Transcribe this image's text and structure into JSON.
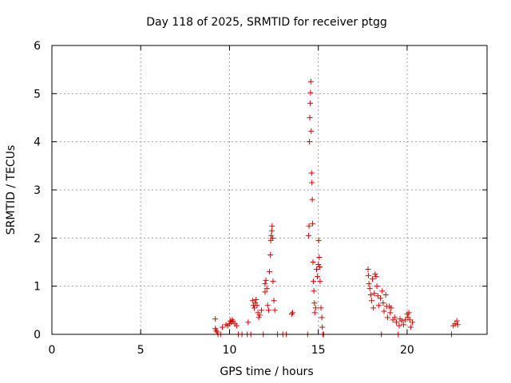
{
  "chart_data": {
    "type": "scatter",
    "title": "Day 118 of 2025, SRMTID for receiver ptgg",
    "xlabel": "GPS time / hours",
    "ylabel": "SRMTID / TECUs",
    "xlim": [
      0,
      24.5
    ],
    "ylim": [
      0,
      6
    ],
    "xticks": [
      0,
      5,
      10,
      15,
      20
    ],
    "yticks": [
      0,
      1,
      2,
      3,
      4,
      5,
      6
    ],
    "grid": true,
    "marker": "plus",
    "color": "#e00000",
    "series": [
      {
        "name": "SRMTID",
        "points": [
          [
            9.2,
            0.32
          ],
          [
            9.2,
            0.12
          ],
          [
            9.25,
            0.08
          ],
          [
            9.3,
            0.05
          ],
          [
            9.35,
            0.0
          ],
          [
            9.5,
            0.0
          ],
          [
            9.6,
            0.15
          ],
          [
            9.8,
            0.2
          ],
          [
            9.9,
            0.18
          ],
          [
            10.0,
            0.22
          ],
          [
            10.05,
            0.28
          ],
          [
            10.1,
            0.25
          ],
          [
            10.15,
            0.3
          ],
          [
            10.2,
            0.27
          ],
          [
            10.3,
            0.22
          ],
          [
            10.4,
            0.18
          ],
          [
            10.5,
            0.0
          ],
          [
            10.7,
            0.0
          ],
          [
            11.0,
            0.0
          ],
          [
            11.05,
            0.25
          ],
          [
            11.2,
            0.0
          ],
          [
            11.3,
            0.7
          ],
          [
            11.35,
            0.6
          ],
          [
            11.4,
            0.55
          ],
          [
            11.45,
            0.65
          ],
          [
            11.5,
            0.72
          ],
          [
            11.55,
            0.6
          ],
          [
            11.6,
            0.45
          ],
          [
            11.65,
            0.35
          ],
          [
            11.7,
            0.4
          ],
          [
            11.8,
            0.5
          ],
          [
            11.9,
            0.0
          ],
          [
            12.0,
            0.88
          ],
          [
            12.0,
            1.05
          ],
          [
            12.05,
            1.12
          ],
          [
            12.1,
            0.95
          ],
          [
            12.15,
            0.6
          ],
          [
            12.2,
            0.5
          ],
          [
            12.25,
            1.3
          ],
          [
            12.3,
            1.65
          ],
          [
            12.32,
            1.95
          ],
          [
            12.35,
            2.05
          ],
          [
            12.38,
            2.15
          ],
          [
            12.4,
            2.25
          ],
          [
            12.42,
            2.0
          ],
          [
            12.45,
            1.1
          ],
          [
            12.5,
            0.7
          ],
          [
            12.55,
            0.5
          ],
          [
            12.7,
            0.0
          ],
          [
            13.0,
            0.0
          ],
          [
            13.2,
            0.0
          ],
          [
            13.5,
            0.42
          ],
          [
            13.55,
            0.45
          ],
          [
            14.4,
            0.0
          ],
          [
            14.45,
            2.05
          ],
          [
            14.48,
            2.25
          ],
          [
            14.5,
            4.0
          ],
          [
            14.52,
            4.5
          ],
          [
            14.55,
            4.8
          ],
          [
            14.56,
            5.02
          ],
          [
            14.58,
            5.25
          ],
          [
            14.6,
            4.22
          ],
          [
            14.62,
            3.35
          ],
          [
            14.64,
            3.15
          ],
          [
            14.66,
            2.8
          ],
          [
            14.68,
            2.3
          ],
          [
            14.7,
            1.5
          ],
          [
            14.72,
            1.1
          ],
          [
            14.75,
            0.9
          ],
          [
            14.78,
            0.65
          ],
          [
            14.8,
            0.45
          ],
          [
            14.85,
            0.55
          ],
          [
            14.9,
            1.35
          ],
          [
            14.95,
            1.2
          ],
          [
            15.0,
            1.45
          ],
          [
            15.02,
            1.95
          ],
          [
            15.05,
            1.6
          ],
          [
            15.08,
            1.4
          ],
          [
            15.1,
            1.1
          ],
          [
            15.15,
            0.55
          ],
          [
            15.2,
            0.35
          ],
          [
            15.22,
            0.15
          ],
          [
            15.25,
            0.0
          ],
          [
            15.3,
            0.0
          ],
          [
            17.8,
            1.35
          ],
          [
            17.82,
            1.22
          ],
          [
            17.85,
            1.05
          ],
          [
            17.9,
            0.95
          ],
          [
            17.95,
            0.82
          ],
          [
            18.0,
            0.7
          ],
          [
            18.05,
            1.15
          ],
          [
            18.1,
            0.55
          ],
          [
            18.15,
            0.85
          ],
          [
            18.2,
            1.25
          ],
          [
            18.25,
            1.2
          ],
          [
            18.3,
            1.0
          ],
          [
            18.35,
            0.8
          ],
          [
            18.4,
            0.6
          ],
          [
            18.5,
            0.75
          ],
          [
            18.55,
            0.0
          ],
          [
            18.6,
            0.9
          ],
          [
            18.65,
            0.65
          ],
          [
            18.7,
            0.48
          ],
          [
            18.8,
            0.82
          ],
          [
            18.85,
            0.58
          ],
          [
            18.9,
            0.35
          ],
          [
            19.0,
            0.58
          ],
          [
            19.05,
            0.45
          ],
          [
            19.1,
            0.55
          ],
          [
            19.2,
            0.3
          ],
          [
            19.3,
            0.35
          ],
          [
            19.4,
            0.25
          ],
          [
            19.5,
            0.0
          ],
          [
            19.55,
            0.18
          ],
          [
            19.6,
            0.32
          ],
          [
            19.7,
            0.28
          ],
          [
            19.8,
            0.2
          ],
          [
            19.9,
            0.3
          ],
          [
            20.0,
            0.42
          ],
          [
            20.05,
            0.35
          ],
          [
            20.1,
            0.45
          ],
          [
            20.15,
            0.3
          ],
          [
            20.2,
            0.15
          ],
          [
            20.3,
            0.25
          ],
          [
            22.5,
            0.0
          ],
          [
            22.6,
            0.18
          ],
          [
            22.7,
            0.22
          ],
          [
            22.8,
            0.28
          ],
          [
            22.85,
            0.2
          ]
        ]
      }
    ]
  }
}
